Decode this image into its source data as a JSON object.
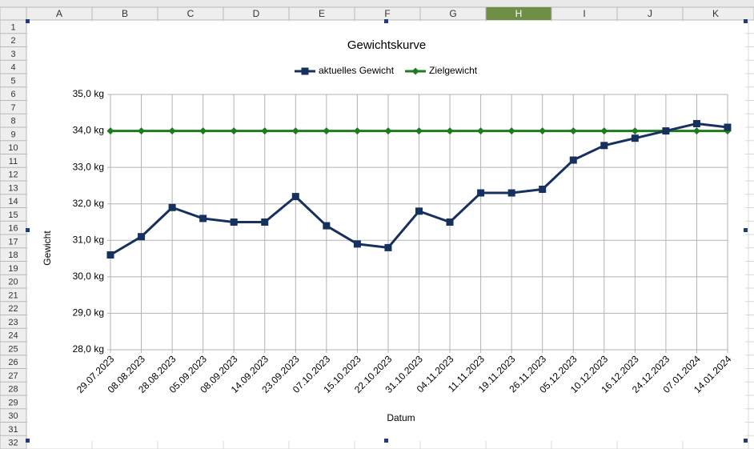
{
  "spreadsheet": {
    "columns": [
      "A",
      "B",
      "C",
      "D",
      "E",
      "F",
      "G",
      "H",
      "I",
      "J",
      "K"
    ],
    "active_column": 7,
    "rows": [
      1,
      2,
      3,
      4,
      5,
      6,
      7,
      8,
      9,
      10,
      11,
      12,
      13,
      14,
      15,
      16,
      17,
      18,
      19,
      20,
      21,
      22,
      23,
      24,
      25,
      26,
      27,
      28,
      29,
      30,
      31,
      32
    ]
  },
  "chart_data": {
    "type": "line",
    "title": "Gewichtskurve",
    "x_label": "Datum",
    "y_label": "Gewicht",
    "categories": [
      "29.07.2023",
      "08.08.2023",
      "28.08.2023",
      "05.09.2023",
      "08.09.2023",
      "14.09.2023",
      "23.09.2023",
      "07.10.2023",
      "15.10.2023",
      "22.10.2023",
      "31.10.2023",
      "04.11.2023",
      "11.11.2023",
      "19.11.2023",
      "26.11.2023",
      "05.12.2023",
      "10.12.2023",
      "16.12.2023",
      "24.12.2023",
      "07.01.2024",
      "14.01.2024"
    ],
    "series": [
      {
        "name": "aktuelles Gewicht",
        "color": "#17315f",
        "marker": "square",
        "values": [
          30.6,
          31.1,
          31.9,
          31.6,
          31.5,
          31.5,
          32.2,
          31.4,
          30.9,
          30.8,
          31.8,
          31.5,
          32.3,
          32.3,
          32.4,
          33.2,
          33.6,
          33.8,
          34.0,
          34.2,
          34.1
        ]
      },
      {
        "name": "Zielgewicht",
        "color": "#1e7b1e",
        "marker": "diamond",
        "values": [
          34,
          34,
          34,
          34,
          34,
          34,
          34,
          34,
          34,
          34,
          34,
          34,
          34,
          34,
          34,
          34,
          34,
          34,
          34,
          34,
          34
        ]
      }
    ],
    "ylim": [
      28,
      35
    ],
    "yticks": [
      {
        "value": 28,
        "label": "28,0 kg"
      },
      {
        "value": 29,
        "label": "29,0 kg"
      },
      {
        "value": 30,
        "label": "30,0 kg"
      },
      {
        "value": 31,
        "label": "31,0 kg"
      },
      {
        "value": 32,
        "label": "32,0 kg"
      },
      {
        "value": 33,
        "label": "33,0 kg"
      },
      {
        "value": 34,
        "label": "34,0 kg"
      },
      {
        "value": 35,
        "label": "35,0 kg"
      }
    ],
    "grid": true,
    "legend": "top"
  }
}
